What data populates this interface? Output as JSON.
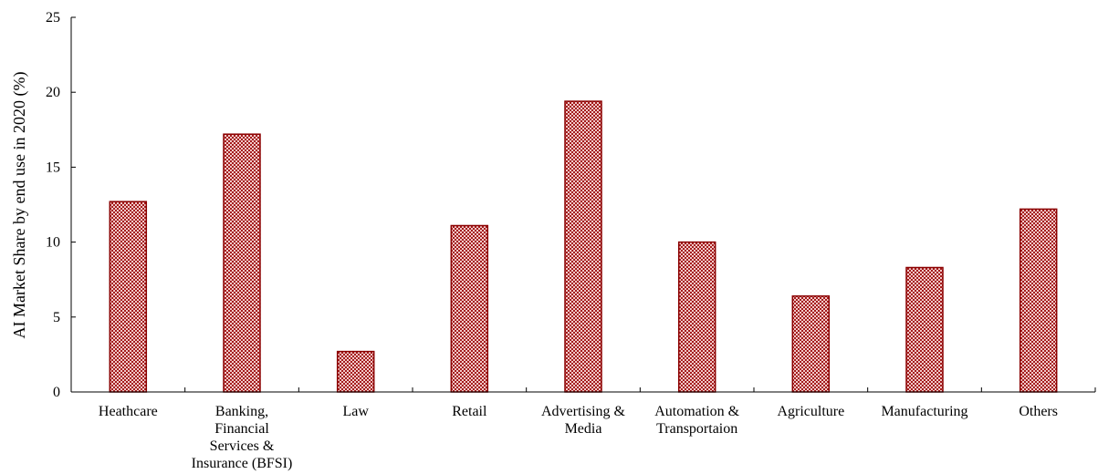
{
  "chart_data": {
    "type": "bar",
    "ylabel": "AI Market Share by end use in 2020 (%)",
    "xlabel": "",
    "ylim": [
      0,
      25
    ],
    "yticks": [
      0,
      5,
      10,
      15,
      20,
      25
    ],
    "grid": false,
    "legend": "none",
    "categories": [
      [
        "Heathcare"
      ],
      [
        "Banking,",
        "Financial",
        "Services &",
        "Insurance (BFSI)"
      ],
      [
        "Law"
      ],
      [
        "Retail"
      ],
      [
        "Advertising &",
        "Media"
      ],
      [
        "Automation &",
        "Transportaion"
      ],
      [
        "Agriculture"
      ],
      [
        "Manufacturing"
      ],
      [
        "Others"
      ]
    ],
    "values": [
      12.7,
      17.2,
      2.7,
      11.1,
      19.4,
      10.0,
      6.4,
      8.3,
      12.2
    ],
    "colors": {
      "bar_fill": "#f2c9c9",
      "bar_pattern": "#a31b1b",
      "bar_edge": "#8b0000",
      "axis": "#000000"
    }
  }
}
